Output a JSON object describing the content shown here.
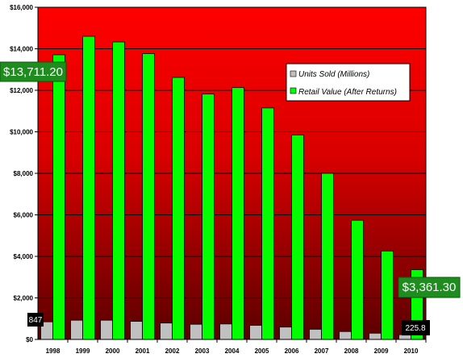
{
  "chart_data": {
    "type": "bar",
    "categories": [
      "1998",
      "1999",
      "2000",
      "2001",
      "2002",
      "2003",
      "2004",
      "2005",
      "2006",
      "2007",
      "2008",
      "2009",
      "2010"
    ],
    "series": [
      {
        "name": "Units Sold (Millions)",
        "values": [
          847,
          925,
          925,
          870,
          790,
          730,
          745,
          680,
          595,
          490,
          380,
          300,
          225.8
        ],
        "color": "#c0c0c0"
      },
      {
        "name": "Retail Value (After Returns)",
        "values": [
          13711.2,
          14600,
          14330,
          13770,
          12620,
          11820,
          12130,
          11150,
          9850,
          8000,
          5740,
          4260,
          3361.3
        ],
        "color": "#00ff00"
      }
    ],
    "ylim": [
      0,
      16000
    ],
    "yticks": [
      "$0",
      "$2,000",
      "$4,000",
      "$6,000",
      "$8,000",
      "$10,000",
      "$12,000",
      "$14,000",
      "$16,000"
    ],
    "ytick_values": [
      0,
      2000,
      4000,
      6000,
      8000,
      10000,
      12000,
      14000,
      16000
    ],
    "grid": true,
    "legend_position": "top-right",
    "plot_background": {
      "top": "#ff0000",
      "bottom": "#5a0000"
    },
    "annotations": [
      {
        "text": "$13,711.20",
        "style": "green",
        "anchor": "1998-retail"
      },
      {
        "text": "$3,361.30",
        "style": "green",
        "anchor": "2010-retail"
      },
      {
        "text": "847",
        "style": "black",
        "anchor": "1998-units"
      },
      {
        "text": "225.8",
        "style": "black",
        "anchor": "2010-units"
      }
    ]
  }
}
